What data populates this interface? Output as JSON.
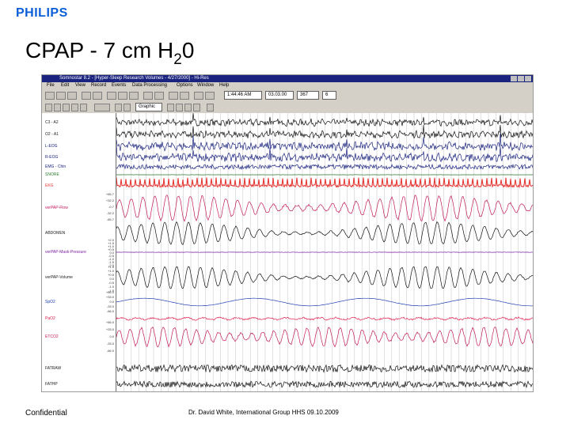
{
  "logo": "PHILIPS",
  "title": {
    "main": "CPAP - 7 cm H",
    "subscript": "2",
    "tail": "0"
  },
  "app": {
    "window_title": "Somnostar 8.2 - [Hyper-Sleep Research Volumes - 4/27/2000] - Hi-Res",
    "menu": [
      "File",
      "Edit",
      "View",
      "Record",
      "Events",
      "Data Processing",
      "Options",
      "Window",
      "Help"
    ],
    "toolbar": {
      "clock": "1:44:46 AM",
      "date": "03.03.00",
      "epoch": "367",
      "page": "6"
    },
    "montage": "Graphic"
  },
  "channels": [
    {
      "label": "C3 - A2",
      "color": "#111111",
      "kind": "eeg"
    },
    {
      "label": "O2 - A1",
      "color": "#111111",
      "kind": "eeg"
    },
    {
      "label": "L-EOG",
      "color": "#1a237e",
      "kind": "eeg"
    },
    {
      "label": "R-EOG",
      "color": "#1a237e",
      "kind": "eeg"
    },
    {
      "label": "EMG - Chin",
      "color": "#1a237e",
      "kind": "emg"
    },
    {
      "label": "SNORE",
      "color": "#2e7d32",
      "kind": "flat"
    },
    {
      "label": "EKG",
      "color": "#e53935",
      "kind": "ekg"
    },
    {
      "label": "verPAP-Flow",
      "color": "#c2185b",
      "kind": "flow"
    },
    {
      "label": "ABDOMEN",
      "color": "#111111",
      "kind": "resp"
    },
    {
      "label": "verPAP-Mask-Pressure",
      "color": "#7b1fa2",
      "kind": "flat"
    },
    {
      "label": "verPAP-Volume",
      "color": "#111111",
      "kind": "resp"
    },
    {
      "label": "SpO2",
      "color": "#1e40af",
      "kind": "sat"
    },
    {
      "label": "PaO2",
      "color": "#e11d48",
      "kind": "small"
    },
    {
      "label": "ETCO2",
      "color": "#c2185b",
      "kind": "co2"
    },
    {
      "label": "FATRAW",
      "color": "#111111",
      "kind": "noise"
    },
    {
      "label": "FATHP",
      "color": "#111111",
      "kind": "noise"
    }
  ],
  "ticks": {
    "flow": [
      "+65.7",
      "+32.2",
      "-0.7",
      "-32.2",
      "-65.7"
    ],
    "pressure": [
      "+2.0",
      "+1.5",
      "+1.0",
      "+0.5",
      "0.0",
      "-0.5",
      "-1.0",
      "-1.5",
      "-2.0"
    ],
    "volume": [
      "+1.5",
      "+1.0",
      "+0.5",
      "0.0",
      "-0.5",
      "-1.0",
      "-1.5"
    ],
    "sat": [
      "+66.0",
      "+33.0",
      "0.0",
      "-33.0",
      "-66.0"
    ],
    "co2": [
      "+66.0",
      "+33.0",
      "0.0",
      "-33.0",
      "-66.0"
    ]
  },
  "colors": {
    "logo": "#0b5ed7",
    "titlebar": "#1a237e",
    "chrome": "#d4d0c8",
    "grid": "#c5c5c5"
  },
  "footer": {
    "left": "Confidential",
    "center": "Dr. David White, International Group HHS 09.10.2009"
  }
}
